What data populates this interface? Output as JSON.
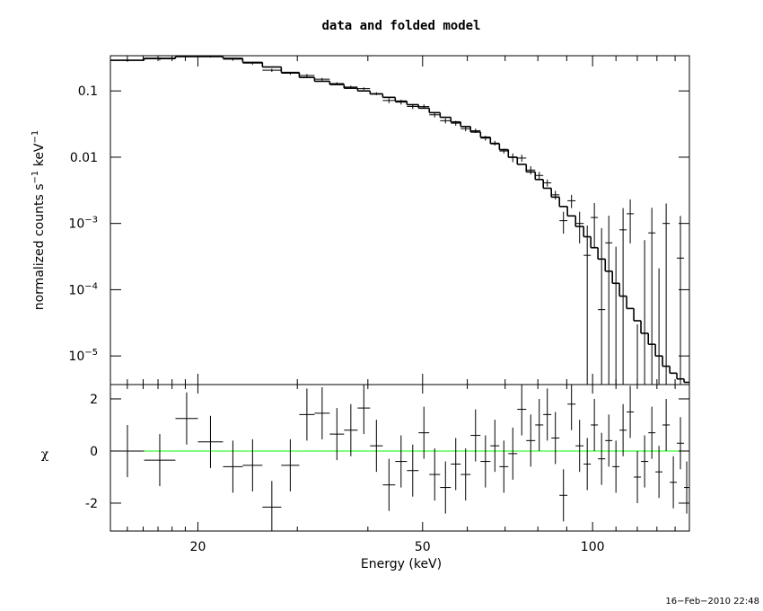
{
  "chart_data": {
    "type": "spectrum",
    "title": "data and folded model",
    "xlabel": "Energy (keV)",
    "ylabel": [
      "normalized counts s",
      "−1",
      " keV",
      "−1"
    ],
    "residual_ylabel": "χ",
    "timestamp": "16−Feb−2010 22:48",
    "log_x": true,
    "log_y": true,
    "xlim": [
      14,
      148.4
    ],
    "xticks": [
      20,
      50,
      100
    ],
    "xminor": [
      15,
      16,
      17,
      18,
      19,
      30,
      40,
      60,
      70,
      80,
      90,
      110,
      120,
      130,
      140
    ],
    "ylim": [
      3.7e-06,
      0.34
    ],
    "yticks": [
      {
        "value": 0.1,
        "label": "0.1"
      },
      {
        "value": 0.01,
        "label": "0.01"
      },
      {
        "value": 0.001,
        "label": "10",
        "exponent": "−3"
      },
      {
        "value": 0.0001,
        "label": "10",
        "exponent": "−4"
      },
      {
        "value": 1e-05,
        "label": "10",
        "exponent": "−5"
      }
    ],
    "residual_ylim": [
      -3.07,
      2.55
    ],
    "residual_yticks": [
      -2,
      0,
      2
    ],
    "zero_line_color": "#00ff00",
    "color": "#000000",
    "bins": [
      14.02,
      16.06,
      18.25,
      20.0,
      22.16,
      24.01,
      26.02,
      28.1,
      30.24,
      32.18,
      34.24,
      36.3,
      38.36,
      40.36,
      42.5,
      44.72,
      46.9,
      49.18,
      51.38,
      53.7,
      56.1,
      58.4,
      60.8,
      63.32,
      65.92,
      68.38,
      70.92,
      73.56,
      76.3,
      79.14,
      81.78,
      84.52,
      87.36,
      90.26,
      93.3,
      96.42,
      99.28,
      102.2,
      105.3,
      108.4,
      111.6,
      114.9,
      118.3,
      121.8,
      125.5,
      129.2,
      133.0,
      137.0,
      141.0,
      145.2,
      148.4
    ],
    "model": [
      0.29,
      0.31,
      0.33,
      0.33,
      0.31,
      0.27,
      0.23,
      0.19,
      0.16,
      0.14,
      0.125,
      0.11,
      0.1,
      0.09,
      0.08,
      0.07,
      0.062,
      0.055,
      0.047,
      0.04,
      0.034,
      0.029,
      0.024,
      0.02,
      0.016,
      0.013,
      0.01,
      0.0078,
      0.006,
      0.0046,
      0.0034,
      0.0025,
      0.0018,
      0.0013,
      0.0009,
      0.00063,
      0.00043,
      0.00029,
      0.00019,
      0.000125,
      8e-05,
      5.2e-05,
      3.4e-05,
      2.2e-05,
      1.5e-05,
      1e-05,
      7e-06,
      5.5e-06,
      4.5e-06,
      4e-06
    ],
    "data": [
      0.29,
      0.3046,
      0.3506,
      0.3358,
      0.3007,
      0.2626,
      0.2053,
      0.1848,
      0.1712,
      0.1502,
      0.1291,
      0.1144,
      0.1083,
      0.0909,
      0.0717,
      0.0678,
      0.0583,
      0.0581,
      0.0436,
      0.0355,
      0.0326,
      0.0269,
      0.0251,
      0.0194,
      0.0163,
      0.0124,
      0.0099,
      0.0097,
      0.0064,
      0.0053,
      0.0041,
      0.0027,
      0.0011,
      0.0022,
      0.001,
      0.00033,
      0.00123,
      5e-05,
      0.00051,
      -0.000355,
      0.0008,
      0.0014,
      -0.00087,
      -0.00034,
      0.00072,
      -0.00079,
      0.001,
      -0.0012,
      0.0003,
      -0.0014
    ],
    "data_err": [
      0.0145,
      0.0155,
      0.0165,
      0.0165,
      0.0155,
      0.0135,
      0.0115,
      0.0095,
      0.008,
      0.007,
      0.00625,
      0.0055,
      0.005,
      0.0045,
      0.0064,
      0.0056,
      0.005,
      0.0044,
      0.0038,
      0.0032,
      0.0027,
      0.0023,
      0.0019,
      0.0016,
      0.0013,
      0.001,
      0.0015,
      0.0012,
      0.0009,
      0.0007,
      0.0005,
      0.0004,
      0.0004,
      0.0005,
      0.0005,
      0.0006,
      0.0008,
      0.0008,
      0.0008,
      0.0008,
      0.0009,
      0.0009,
      0.0009,
      0.0009,
      0.001,
      0.001,
      0.001,
      0.001,
      0.001,
      0.001
    ],
    "residuals": [
      0,
      -0.35,
      1.25,
      0.35,
      -0.6,
      -0.55,
      -2.15,
      -0.55,
      1.4,
      1.45,
      0.65,
      0.8,
      1.65,
      0.2,
      -1.3,
      -0.4,
      -0.75,
      0.7,
      -0.9,
      -1.4,
      -0.5,
      -0.9,
      0.6,
      -0.4,
      0.2,
      -0.6,
      -0.1,
      1.6,
      0.4,
      1.0,
      1.4,
      0.5,
      -1.7,
      1.8,
      0.2,
      -0.5,
      1.0,
      -0.3,
      0.4,
      -0.6,
      0.8,
      1.5,
      -1.0,
      -0.4,
      0.7,
      -0.8,
      1.0,
      -1.2,
      0.3,
      -1.4
    ],
    "residual_err": [
      1,
      1,
      1,
      1,
      1,
      1,
      1,
      1,
      1,
      1,
      1,
      1,
      1,
      1,
      1,
      1,
      1,
      1,
      1,
      1,
      1,
      1,
      1,
      1,
      1,
      1,
      1,
      1,
      1,
      1,
      1,
      1,
      1,
      1,
      1,
      1,
      1,
      1,
      1,
      1,
      1,
      1,
      1,
      1,
      1,
      1,
      1,
      1,
      1,
      1
    ]
  }
}
